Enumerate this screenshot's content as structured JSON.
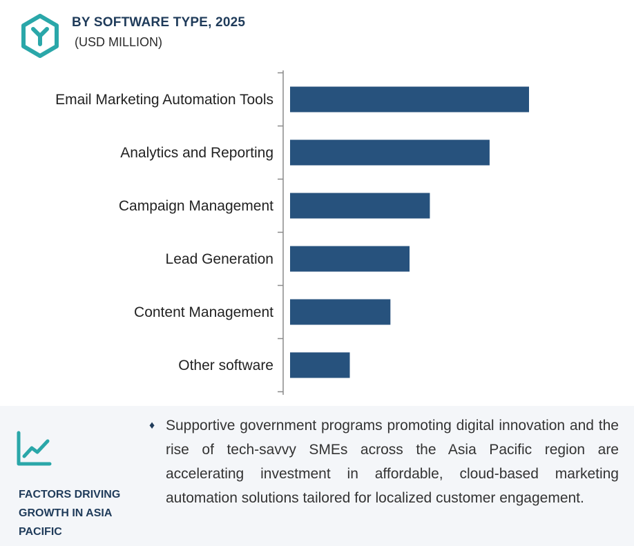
{
  "header": {
    "title": "BY SOFTWARE TYPE, 2025",
    "subtitle": "(USD MILLION)"
  },
  "colors": {
    "bar": "#27527d",
    "accent": "#2aa7a9",
    "heading": "#1f3b5a",
    "axis": "#8a8a8a"
  },
  "chart_data": {
    "type": "bar",
    "orientation": "horizontal",
    "categories": [
      "Email Marketing Automation Tools",
      "Analytics and Reporting",
      "Campaign Management",
      "Lead Generation",
      "Content Management",
      "Other software"
    ],
    "values": [
      100,
      83.5,
      58.5,
      50,
      42,
      25
    ],
    "title": "BY SOFTWARE TYPE, 2025",
    "subtitle": "(USD MILLION)",
    "xlabel": "",
    "ylabel": "",
    "xlim": [
      0,
      100
    ],
    "grid": false,
    "legend": "none"
  },
  "footer": {
    "icon": "trend-line-icon",
    "label": "FACTORS DRIVING GROWTH IN ASIA PACIFIC",
    "bullet_icon": "diamond-bullet",
    "bullet_text": "Supportive government programs promoting digital innovation and the rise of tech-savvy SMEs across the Asia Pacific region are accelerating investment in affordable, cloud-based marketing automation solutions tailored for localized customer engagement."
  }
}
